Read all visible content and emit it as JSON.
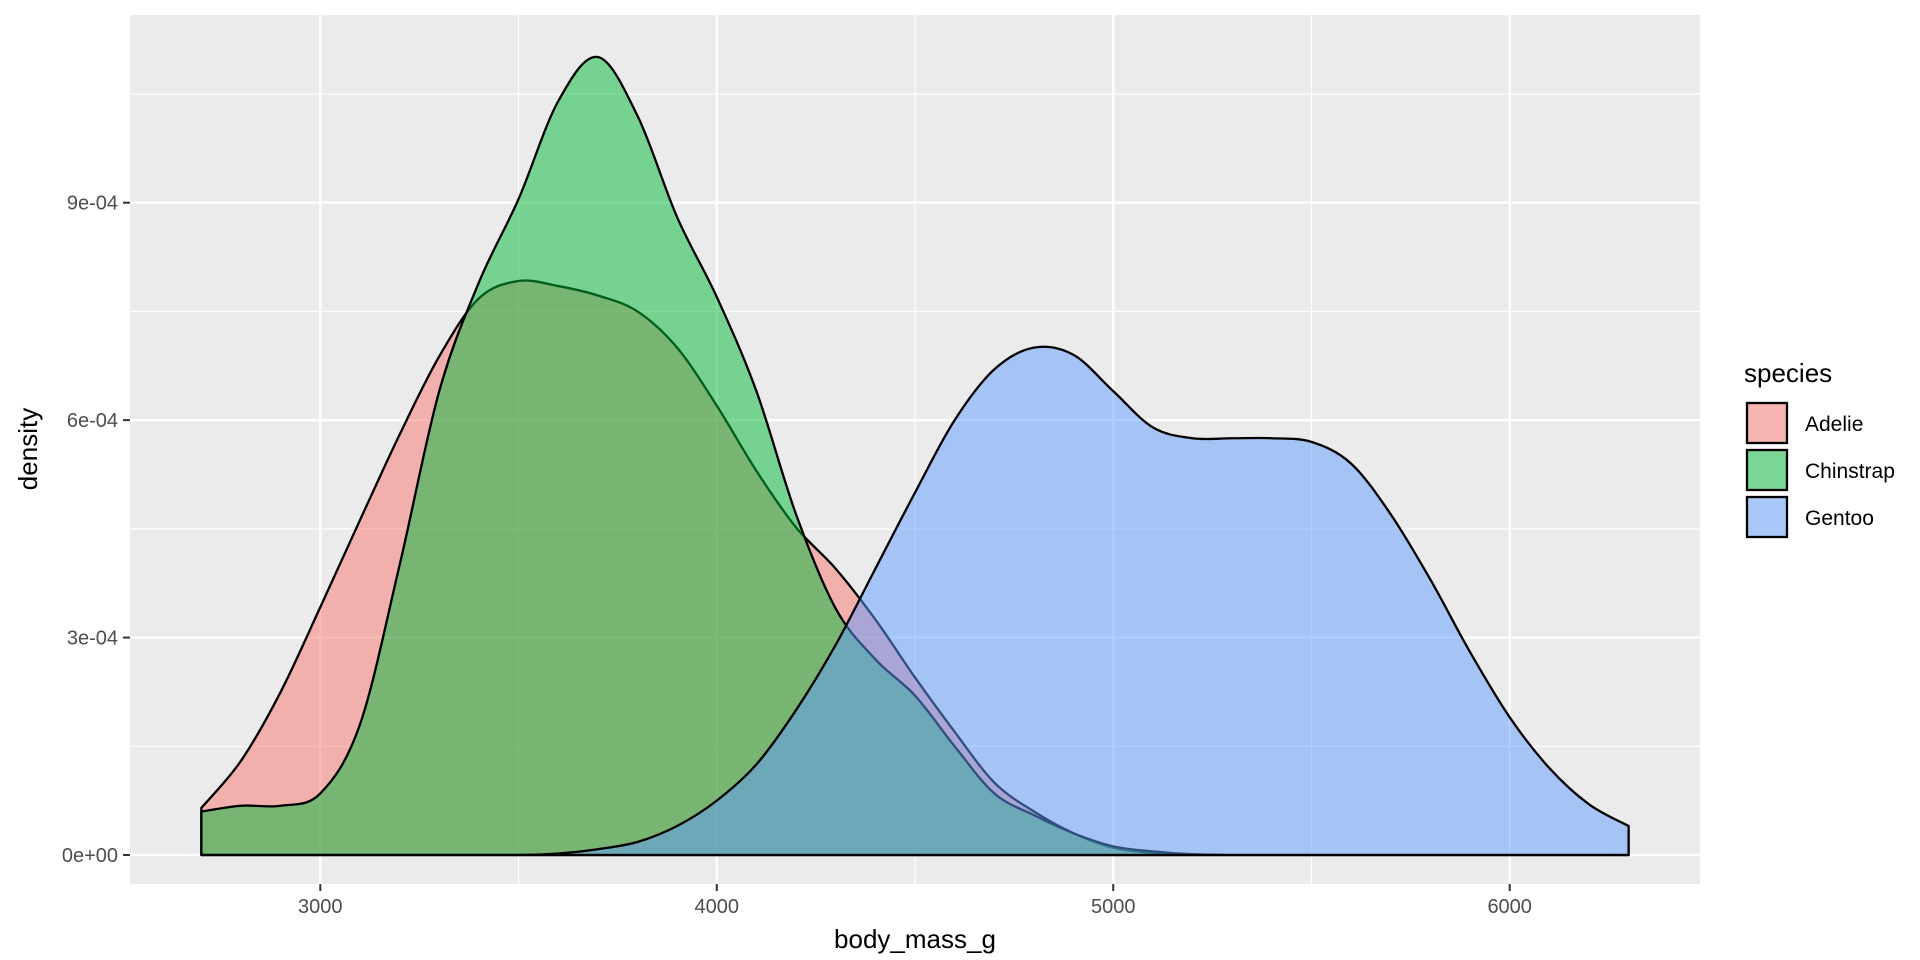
{
  "chart_data": {
    "type": "area",
    "subtype": "density",
    "xlabel": "body_mass_g",
    "ylabel": "density",
    "xlim": [
      2520,
      6480
    ],
    "ylim": [
      -4e-05,
      0.001159
    ],
    "x_ticks": [
      3000,
      4000,
      5000,
      6000
    ],
    "x_tick_labels": [
      "3000",
      "4000",
      "5000",
      "6000"
    ],
    "y_ticks": [
      0,
      0.0003,
      0.0006,
      0.0009
    ],
    "y_tick_labels": [
      "0e+00",
      "3e-04",
      "6e-04",
      "9e-04"
    ],
    "grid": true,
    "legend": {
      "title": "species",
      "position": "right"
    },
    "series": [
      {
        "name": "Adelie",
        "color": "#F8766D",
        "points": [
          [
            2700,
            6.5e-05
          ],
          [
            2800,
            0.00013
          ],
          [
            2900,
            0.000225
          ],
          [
            3000,
            0.000342
          ],
          [
            3100,
            0.000462
          ],
          [
            3200,
            0.00058
          ],
          [
            3300,
            0.000688
          ],
          [
            3400,
            0.000768
          ],
          [
            3500,
            0.000792
          ],
          [
            3600,
            0.000785
          ],
          [
            3700,
            0.000772
          ],
          [
            3800,
            0.00075
          ],
          [
            3900,
            0.0007
          ],
          [
            4000,
            0.00062
          ],
          [
            4100,
            0.00053
          ],
          [
            4200,
            0.000452
          ],
          [
            4300,
            0.000395
          ],
          [
            4400,
            0.000325
          ],
          [
            4500,
            0.000245
          ],
          [
            4600,
            0.00017
          ],
          [
            4700,
            0.0001
          ],
          [
            4800,
            6e-05
          ],
          [
            4900,
            3e-05
          ],
          [
            5000,
            1e-05
          ],
          [
            5100,
            3e-06
          ],
          [
            5200,
            1e-06
          ],
          [
            5300,
            0.0
          ],
          [
            5500,
            0.0
          ],
          [
            6000,
            0.0
          ],
          [
            6300,
            0.0
          ]
        ]
      },
      {
        "name": "Chinstrap",
        "color": "#00BA38",
        "points": [
          [
            2700,
            6e-05
          ],
          [
            2800,
            6.8e-05
          ],
          [
            2900,
            6.8e-05
          ],
          [
            3000,
            8.5e-05
          ],
          [
            3100,
            0.00018
          ],
          [
            3200,
            0.0004
          ],
          [
            3300,
            0.00064
          ],
          [
            3400,
            0.00079
          ],
          [
            3500,
            0.000905
          ],
          [
            3600,
            0.00104
          ],
          [
            3700,
            0.001101
          ],
          [
            3800,
            0.00102
          ],
          [
            3900,
            0.00088
          ],
          [
            4000,
            0.00077
          ],
          [
            4100,
            0.00064
          ],
          [
            4200,
            0.00047
          ],
          [
            4300,
            0.00034
          ],
          [
            4400,
            0.00027
          ],
          [
            4500,
            0.00022
          ],
          [
            4600,
            0.00015
          ],
          [
            4700,
            8.5e-05
          ],
          [
            4800,
            5.5e-05
          ],
          [
            4900,
            3e-05
          ],
          [
            5000,
            1.2e-05
          ],
          [
            5100,
            5e-06
          ],
          [
            5200,
            1e-06
          ],
          [
            5300,
            0.0
          ],
          [
            5500,
            0.0
          ],
          [
            6000,
            0.0
          ],
          [
            6300,
            0.0
          ]
        ]
      },
      {
        "name": "Gentoo",
        "color": "#619CFF",
        "points": [
          [
            2700,
            0.0
          ],
          [
            3000,
            0.0
          ],
          [
            3300,
            0.0
          ],
          [
            3500,
            0.0
          ],
          [
            3600,
            2e-06
          ],
          [
            3700,
            8e-06
          ],
          [
            3800,
            1.8e-05
          ],
          [
            3900,
            4e-05
          ],
          [
            4000,
            7.5e-05
          ],
          [
            4100,
            0.000125
          ],
          [
            4200,
            0.0002
          ],
          [
            4300,
            0.00029
          ],
          [
            4400,
            0.000395
          ],
          [
            4500,
            0.0005
          ],
          [
            4600,
            0.0006
          ],
          [
            4700,
            0.00067
          ],
          [
            4800,
            0.0007
          ],
          [
            4900,
            0.00069
          ],
          [
            5000,
            0.00064
          ],
          [
            5100,
            0.00059
          ],
          [
            5200,
            0.000575
          ],
          [
            5300,
            0.000575
          ],
          [
            5400,
            0.000575
          ],
          [
            5500,
            0.00057
          ],
          [
            5600,
            0.00054
          ],
          [
            5700,
            0.00047
          ],
          [
            5800,
            0.00038
          ],
          [
            5900,
            0.00028
          ],
          [
            6000,
            0.00019
          ],
          [
            6100,
            0.00012
          ],
          [
            6200,
            7e-05
          ],
          [
            6300,
            4e-05
          ]
        ]
      }
    ]
  }
}
